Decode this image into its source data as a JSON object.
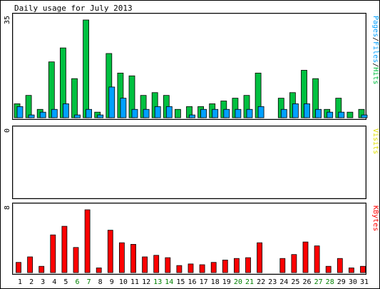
{
  "chart_data": {
    "type": "bar",
    "title": "Daily usage for July 2013",
    "days": [
      "1",
      "2",
      "3",
      "4",
      "5",
      "6",
      "7",
      "8",
      "9",
      "10",
      "11",
      "12",
      "13",
      "14",
      "15",
      "16",
      "17",
      "18",
      "19",
      "20",
      "21",
      "22",
      "23",
      "24",
      "25",
      "26",
      "27",
      "28",
      "29",
      "30",
      "31"
    ],
    "weekend_days": [
      "6",
      "7",
      "13",
      "14",
      "20",
      "21",
      "27",
      "28"
    ],
    "colors": {
      "hits": "#00c040",
      "files": "#00a0ff",
      "visits": "#e0e000",
      "kbytes": "#ff0000",
      "pages": "#00a0ff",
      "weekday_label": "#000000",
      "weekend_label": "#008000"
    },
    "panels": [
      {
        "id": "hits-files",
        "max_label": "35",
        "ymax": 35,
        "legend": [
          {
            "text": "Pages",
            "color_key": "pages"
          },
          {
            "text": "/",
            "color_key": "weekday_label"
          },
          {
            "text": "Files",
            "color_key": "files"
          },
          {
            "text": "/",
            "color_key": "weekday_label"
          },
          {
            "text": "Hits",
            "color_key": "hits"
          }
        ],
        "series": [
          {
            "name": "Hits",
            "color_key": "hits",
            "values": [
              5,
              8,
              3,
              20,
              25,
              14,
              35,
              2,
              23,
              16,
              15,
              8,
              9,
              8,
              3,
              4,
              4,
              5,
              6,
              7,
              8,
              16,
              0,
              7,
              9,
              17,
              14,
              3,
              7,
              2,
              3
            ]
          },
          {
            "name": "Files",
            "color_key": "files",
            "values": [
              4,
              1,
              2,
              3,
              5,
              1,
              3,
              1,
              11,
              7,
              3,
              3,
              4,
              4,
              0,
              1,
              3,
              3,
              3,
              3,
              3,
              4,
              0,
              3,
              5,
              5,
              3,
              2,
              2,
              0,
              1
            ]
          }
        ]
      },
      {
        "id": "visits",
        "max_label": "0",
        "ymax": 1,
        "legend": [
          {
            "text": "Visits",
            "color_key": "visits"
          }
        ],
        "series": []
      },
      {
        "id": "kbytes",
        "max_label": "8",
        "ymax": 8,
        "legend": [
          {
            "text": "KBytes",
            "color_key": "kbytes"
          }
        ],
        "series": [
          {
            "name": "KBytes",
            "color_key": "kbytes",
            "values": [
              1.3,
              2,
              0.8,
              4.8,
              5.9,
              3.2,
              8,
              0.6,
              5.4,
              3.8,
              3.6,
              2,
              2.2,
              1.9,
              0.9,
              1.1,
              1,
              1.3,
              1.6,
              1.8,
              1.9,
              3.8,
              0,
              1.8,
              2.3,
              3.9,
              3.4,
              0.8,
              1.8,
              0.6,
              0.8
            ]
          }
        ]
      }
    ]
  }
}
